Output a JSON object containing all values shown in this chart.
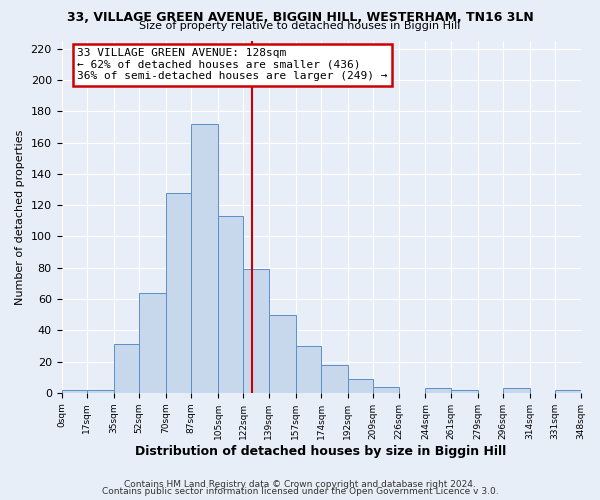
{
  "title1": "33, VILLAGE GREEN AVENUE, BIGGIN HILL, WESTERHAM, TN16 3LN",
  "title2": "Size of property relative to detached houses in Biggin Hill",
  "xlabel": "Distribution of detached houses by size in Biggin Hill",
  "ylabel": "Number of detached properties",
  "bar_color": "#c8d8ec",
  "bar_edge_color": "#5b8fc9",
  "background_color": "#e8eef8",
  "grid_color": "#d0d8e8",
  "bin_edges": [
    0,
    17,
    35,
    52,
    70,
    87,
    105,
    122,
    139,
    157,
    174,
    192,
    209,
    226,
    244,
    261,
    279,
    296,
    314,
    331,
    348
  ],
  "bin_labels": [
    "0sqm",
    "17sqm",
    "35sqm",
    "52sqm",
    "70sqm",
    "87sqm",
    "105sqm",
    "122sqm",
    "139sqm",
    "157sqm",
    "174sqm",
    "192sqm",
    "209sqm",
    "226sqm",
    "244sqm",
    "261sqm",
    "279sqm",
    "296sqm",
    "314sqm",
    "331sqm",
    "348sqm"
  ],
  "bar_heights": [
    2,
    2,
    31,
    64,
    128,
    172,
    113,
    79,
    50,
    30,
    18,
    9,
    4,
    0,
    3,
    2,
    0,
    3,
    0,
    2
  ],
  "vline_x": 128,
  "vline_color": "#cc0000",
  "annotation_line1": "33 VILLAGE GREEN AVENUE: 128sqm",
  "annotation_line2": "← 62% of detached houses are smaller (436)",
  "annotation_line3": "36% of semi-detached houses are larger (249) →",
  "annotation_box_color": "#ffffff",
  "annotation_box_edge_color": "#cc0000",
  "ylim": [
    0,
    225
  ],
  "yticks": [
    0,
    20,
    40,
    60,
    80,
    100,
    120,
    140,
    160,
    180,
    200,
    220
  ],
  "footer1": "Contains HM Land Registry data © Crown copyright and database right 2024.",
  "footer2": "Contains public sector information licensed under the Open Government Licence v 3.0."
}
